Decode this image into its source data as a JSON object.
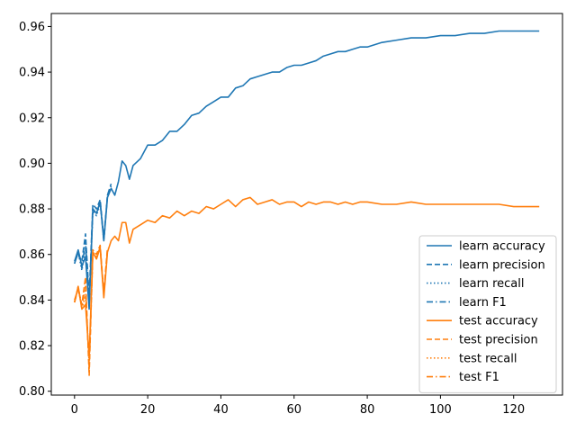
{
  "chart_data": {
    "type": "line",
    "xlim": [
      -6.35,
      133.35
    ],
    "ylim": [
      0.7983,
      0.9657
    ],
    "xticks": [
      0,
      20,
      40,
      60,
      80,
      100,
      120
    ],
    "xtick_labels": [
      "0",
      "20",
      "40",
      "60",
      "80",
      "100",
      "120"
    ],
    "yticks": [
      0.8,
      0.82,
      0.84,
      0.86,
      0.88,
      0.9,
      0.92,
      0.94,
      0.96
    ],
    "ytick_labels": [
      "0.80",
      "0.82",
      "0.84",
      "0.86",
      "0.88",
      "0.90",
      "0.92",
      "0.94",
      "0.96"
    ],
    "grid": false,
    "legend_position": "lower-right",
    "colors": {
      "learn": "#1f77b4",
      "test": "#ff7f0e"
    },
    "series": [
      {
        "name": "learn accuracy",
        "style": "solid",
        "color": "#1f77b4",
        "points": [
          [
            0,
            0.857
          ],
          [
            1,
            0.862
          ],
          [
            2,
            0.855
          ],
          [
            3,
            0.859
          ],
          [
            4,
            0.836
          ],
          [
            5,
            0.88
          ],
          [
            6,
            0.878
          ],
          [
            7,
            0.883
          ],
          [
            8,
            0.866
          ],
          [
            9,
            0.885
          ],
          [
            10,
            0.889
          ],
          [
            11,
            0.886
          ],
          [
            12,
            0.892
          ],
          [
            13,
            0.901
          ],
          [
            14,
            0.899
          ],
          [
            15,
            0.893
          ],
          [
            16,
            0.899
          ],
          [
            18,
            0.902
          ],
          [
            20,
            0.908
          ],
          [
            22,
            0.908
          ],
          [
            24,
            0.91
          ],
          [
            26,
            0.914
          ],
          [
            28,
            0.914
          ],
          [
            30,
            0.917
          ],
          [
            32,
            0.921
          ],
          [
            34,
            0.922
          ],
          [
            36,
            0.925
          ],
          [
            38,
            0.927
          ],
          [
            40,
            0.929
          ],
          [
            42,
            0.929
          ],
          [
            44,
            0.933
          ],
          [
            46,
            0.934
          ],
          [
            48,
            0.937
          ],
          [
            50,
            0.938
          ],
          [
            52,
            0.939
          ],
          [
            54,
            0.94
          ],
          [
            56,
            0.94
          ],
          [
            58,
            0.942
          ],
          [
            60,
            0.943
          ],
          [
            62,
            0.943
          ],
          [
            64,
            0.944
          ],
          [
            66,
            0.945
          ],
          [
            68,
            0.947
          ],
          [
            70,
            0.948
          ],
          [
            72,
            0.949
          ],
          [
            74,
            0.949
          ],
          [
            76,
            0.95
          ],
          [
            78,
            0.951
          ],
          [
            80,
            0.951
          ],
          [
            84,
            0.953
          ],
          [
            88,
            0.954
          ],
          [
            92,
            0.955
          ],
          [
            96,
            0.955
          ],
          [
            100,
            0.956
          ],
          [
            104,
            0.956
          ],
          [
            108,
            0.957
          ],
          [
            112,
            0.957
          ],
          [
            116,
            0.958
          ],
          [
            120,
            0.958
          ],
          [
            124,
            0.958
          ],
          [
            127,
            0.958
          ]
        ]
      },
      {
        "name": "learn precision",
        "style": "dashed",
        "color": "#1f77b4",
        "points": [
          [
            0,
            0.857
          ],
          [
            1,
            0.86
          ],
          [
            2,
            0.857
          ],
          [
            3,
            0.869
          ],
          [
            4,
            0.841
          ],
          [
            5,
            0.882
          ],
          [
            6,
            0.88
          ],
          [
            7,
            0.884
          ],
          [
            8,
            0.867
          ],
          [
            9,
            0.886
          ],
          [
            10,
            0.891
          ]
        ]
      },
      {
        "name": "learn recall",
        "style": "dotted",
        "color": "#1f77b4",
        "points": [
          [
            0,
            0.856
          ],
          [
            1,
            0.861
          ],
          [
            2,
            0.853
          ],
          [
            3,
            0.863
          ],
          [
            4,
            0.838
          ],
          [
            5,
            0.879
          ],
          [
            6,
            0.877
          ],
          [
            7,
            0.882
          ]
        ]
      },
      {
        "name": "learn F1",
        "style": "dashdot",
        "color": "#1f77b4",
        "points": [
          [
            0,
            0.856
          ],
          [
            1,
            0.861
          ],
          [
            2,
            0.854
          ],
          [
            3,
            0.866
          ],
          [
            4,
            0.839
          ],
          [
            5,
            0.88
          ],
          [
            6,
            0.878
          ],
          [
            7,
            0.883
          ],
          [
            8,
            0.866
          ],
          [
            9,
            0.886
          ],
          [
            10,
            0.89
          ]
        ]
      },
      {
        "name": "test accuracy",
        "style": "solid",
        "color": "#ff7f0e",
        "points": [
          [
            0,
            0.839
          ],
          [
            1,
            0.846
          ],
          [
            2,
            0.836
          ],
          [
            3,
            0.838
          ],
          [
            4,
            0.815
          ],
          [
            5,
            0.861
          ],
          [
            6,
            0.858
          ],
          [
            7,
            0.863
          ],
          [
            8,
            0.841
          ],
          [
            9,
            0.861
          ],
          [
            10,
            0.866
          ],
          [
            11,
            0.868
          ],
          [
            12,
            0.866
          ],
          [
            13,
            0.874
          ],
          [
            14,
            0.874
          ],
          [
            15,
            0.865
          ],
          [
            16,
            0.871
          ],
          [
            18,
            0.873
          ],
          [
            20,
            0.875
          ],
          [
            22,
            0.874
          ],
          [
            24,
            0.877
          ],
          [
            26,
            0.876
          ],
          [
            28,
            0.879
          ],
          [
            30,
            0.877
          ],
          [
            32,
            0.879
          ],
          [
            34,
            0.878
          ],
          [
            36,
            0.881
          ],
          [
            38,
            0.88
          ],
          [
            40,
            0.882
          ],
          [
            42,
            0.884
          ],
          [
            44,
            0.881
          ],
          [
            46,
            0.884
          ],
          [
            48,
            0.885
          ],
          [
            50,
            0.882
          ],
          [
            52,
            0.883
          ],
          [
            54,
            0.884
          ],
          [
            56,
            0.882
          ],
          [
            58,
            0.883
          ],
          [
            60,
            0.883
          ],
          [
            62,
            0.881
          ],
          [
            64,
            0.883
          ],
          [
            66,
            0.882
          ],
          [
            68,
            0.883
          ],
          [
            70,
            0.883
          ],
          [
            72,
            0.882
          ],
          [
            74,
            0.883
          ],
          [
            76,
            0.882
          ],
          [
            78,
            0.883
          ],
          [
            80,
            0.883
          ],
          [
            84,
            0.882
          ],
          [
            88,
            0.882
          ],
          [
            92,
            0.883
          ],
          [
            96,
            0.882
          ],
          [
            100,
            0.882
          ],
          [
            104,
            0.882
          ],
          [
            108,
            0.882
          ],
          [
            112,
            0.882
          ],
          [
            116,
            0.882
          ],
          [
            120,
            0.881
          ],
          [
            124,
            0.881
          ],
          [
            127,
            0.881
          ]
        ]
      },
      {
        "name": "test precision",
        "style": "dashed",
        "color": "#ff7f0e",
        "points": [
          [
            0,
            0.84
          ],
          [
            1,
            0.845
          ],
          [
            2,
            0.838
          ],
          [
            3,
            0.85
          ],
          [
            4,
            0.807
          ],
          [
            5,
            0.862
          ],
          [
            6,
            0.86
          ],
          [
            7,
            0.864
          ],
          [
            8,
            0.843
          ],
          [
            9,
            0.863
          ]
        ]
      },
      {
        "name": "test recall",
        "style": "dotted",
        "color": "#ff7f0e",
        "points": [
          [
            0,
            0.839
          ],
          [
            1,
            0.846
          ],
          [
            2,
            0.836
          ],
          [
            3,
            0.842
          ],
          [
            4,
            0.812
          ],
          [
            5,
            0.861
          ],
          [
            6,
            0.858
          ]
        ]
      },
      {
        "name": "test F1",
        "style": "dashdot",
        "color": "#ff7f0e",
        "points": [
          [
            0,
            0.839
          ],
          [
            1,
            0.845
          ],
          [
            2,
            0.837
          ],
          [
            3,
            0.846
          ],
          [
            4,
            0.81
          ],
          [
            5,
            0.861
          ],
          [
            6,
            0.859
          ],
          [
            7,
            0.863
          ],
          [
            8,
            0.842
          ],
          [
            9,
            0.862
          ]
        ]
      }
    ]
  }
}
